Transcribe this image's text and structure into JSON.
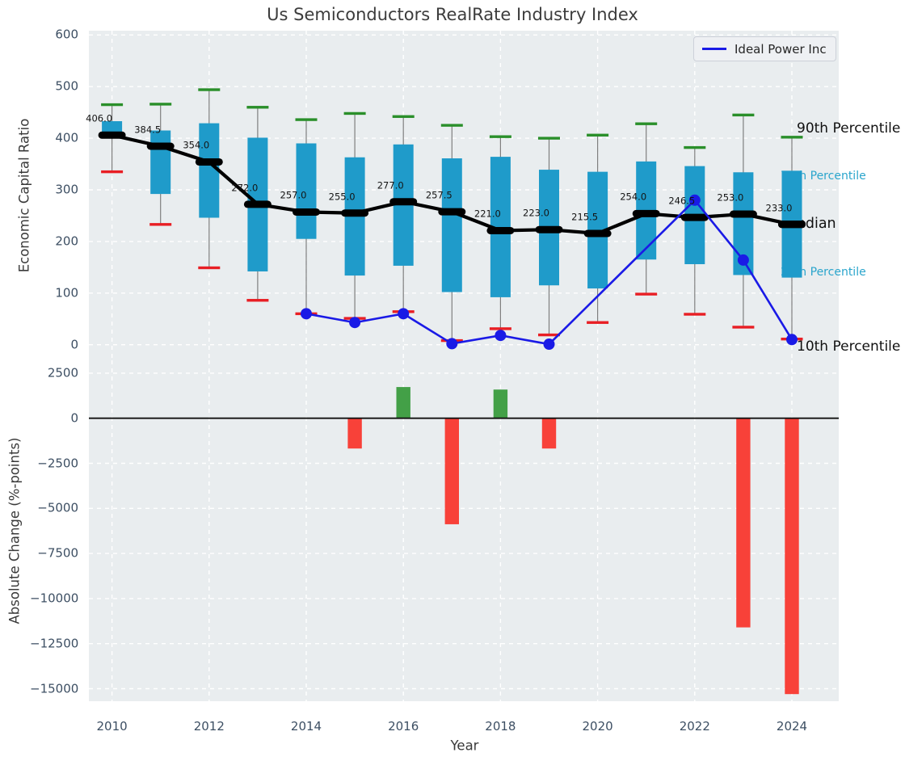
{
  "title": "Us Semiconductors RealRate Industry Index",
  "legend": {
    "label": "Ideal Power Inc"
  },
  "annotations": {
    "p90": "90th Percentile",
    "p75": "75th Percentile",
    "median": "Median",
    "p25": "25th Percentile",
    "p10": "10th Percentile"
  },
  "colors": {
    "plot_bg": "#e9edef",
    "grid": "#ffffff",
    "box": "#1f9bca",
    "whisker": "#7f7f7f",
    "p90_cap": "#2a8f2a",
    "p10_cap": "#e81e24",
    "median_line": "#000000",
    "company_line": "#1a1ae6",
    "bar_positive": "#43a047",
    "bar_negative": "#f84139",
    "zero_line": "#111111",
    "cyan_label": "#2aa5cc",
    "tick": "#3d4f63"
  },
  "chart_data": [
    {
      "type": "boxplot+line",
      "panel": "top",
      "title": "Us Semiconductors RealRate Industry Index",
      "ylabel": "Economic Capital Ratio",
      "ylim": [
        -30,
        608
      ],
      "yticks": [
        600,
        500,
        400,
        300,
        200,
        100,
        0
      ],
      "grid": true,
      "legend_position": "upper right",
      "boxes": [
        {
          "year": 2010,
          "median": 406.0,
          "median_label": "406.0",
          "q25": 403,
          "q75": 433,
          "p10": 335,
          "p90": 465
        },
        {
          "year": 2011,
          "median": 384.5,
          "median_label": "384.5",
          "q25": 292,
          "q75": 415,
          "p10": 233,
          "p90": 466
        },
        {
          "year": 2012,
          "median": 354.0,
          "median_label": "354.0",
          "q25": 246,
          "q75": 429,
          "p10": 149,
          "p90": 494
        },
        {
          "year": 2013,
          "median": 272.0,
          "median_label": "272.0",
          "q25": 142,
          "q75": 401,
          "p10": 86,
          "p90": 460
        },
        {
          "year": 2014,
          "median": 257.0,
          "median_label": "257.0",
          "q25": 205,
          "q75": 390,
          "p10": 60,
          "p90": 436
        },
        {
          "year": 2015,
          "median": 255.0,
          "median_label": "255.0",
          "q25": 134,
          "q75": 363,
          "p10": 51,
          "p90": 448
        },
        {
          "year": 2016,
          "median": 277.0,
          "median_label": "277.0",
          "q25": 153,
          "q75": 388,
          "p10": 64,
          "p90": 442
        },
        {
          "year": 2017,
          "median": 257.5,
          "median_label": "257.5",
          "q25": 102,
          "q75": 361,
          "p10": 8,
          "p90": 425
        },
        {
          "year": 2018,
          "median": 221.0,
          "median_label": "221.0",
          "q25": 92,
          "q75": 364,
          "p10": 31,
          "p90": 403
        },
        {
          "year": 2019,
          "median": 223.0,
          "median_label": "223.0",
          "q25": 115,
          "q75": 339,
          "p10": 19,
          "p90": 400
        },
        {
          "year": 2020,
          "median": 215.5,
          "median_label": "215.5",
          "q25": 109,
          "q75": 335,
          "p10": 43,
          "p90": 406
        },
        {
          "year": 2021,
          "median": 254.0,
          "median_label": "254.0",
          "q25": 165,
          "q75": 355,
          "p10": 98,
          "p90": 428
        },
        {
          "year": 2022,
          "median": 246.5,
          "median_label": "246.5",
          "q25": 156,
          "q75": 346,
          "p10": 59,
          "p90": 382
        },
        {
          "year": 2023,
          "median": 253.0,
          "median_label": "253.0",
          "q25": 135,
          "q75": 334,
          "p10": 34,
          "p90": 445
        },
        {
          "year": 2024,
          "median": 233.0,
          "median_label": "233.0",
          "q25": 130,
          "q75": 337,
          "p10": 11,
          "p90": 402
        }
      ],
      "series": [
        {
          "name": "Ideal Power Inc",
          "points": [
            {
              "year": 2014,
              "value": 60
            },
            {
              "year": 2015,
              "value": 43
            },
            {
              "year": 2016,
              "value": 60
            },
            {
              "year": 2017,
              "value": 2
            },
            {
              "year": 2018,
              "value": 18
            },
            {
              "year": 2019,
              "value": 1
            },
            {
              "year": 2022,
              "value": 280
            },
            {
              "year": 2023,
              "value": 164
            },
            {
              "year": 2024,
              "value": 10
            }
          ]
        }
      ]
    },
    {
      "type": "bar",
      "panel": "bottom",
      "ylabel": "Absolute Change (%-points)",
      "xlabel": "Year",
      "ylim": [
        -15700,
        3200
      ],
      "yticks": [
        "2500",
        "0",
        "−2500",
        "−5000",
        "−7500",
        "−10000",
        "−12500",
        "−15000"
      ],
      "ytick_values": [
        2500,
        0,
        -2500,
        -5000,
        -7500,
        -10000,
        -12500,
        -15000
      ],
      "xticks": [
        2010,
        2012,
        2014,
        2016,
        2018,
        2020,
        2022,
        2024
      ],
      "grid": true,
      "bars": [
        {
          "year": 2015,
          "value": -1680
        },
        {
          "year": 2016,
          "value": 1730
        },
        {
          "year": 2017,
          "value": -5880
        },
        {
          "year": 2018,
          "value": 1590
        },
        {
          "year": 2019,
          "value": -1680
        },
        {
          "year": 2023,
          "value": -11600
        },
        {
          "year": 2024,
          "value": -15300
        }
      ]
    }
  ]
}
